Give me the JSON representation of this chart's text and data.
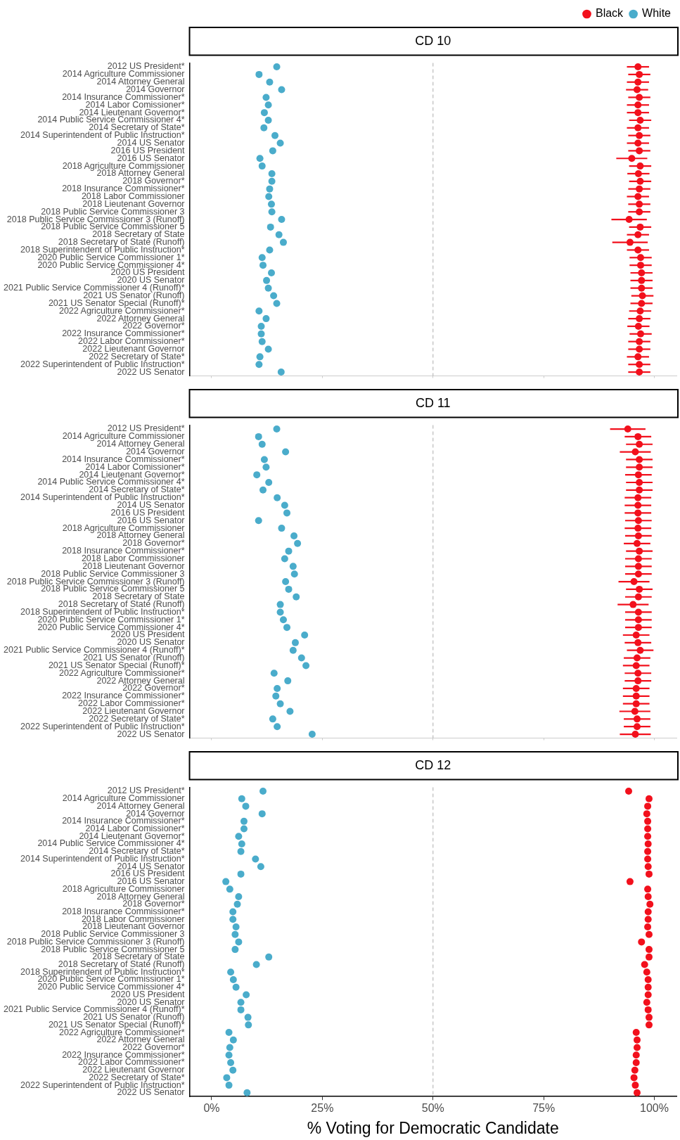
{
  "chart_data": [
    {
      "type": "scatter",
      "title": "CD 10",
      "orientation": "horizontal",
      "legend": "top right",
      "marker": "circle",
      "grid": false,
      "tick_labels": "y",
      "xlim": [
        -5,
        105
      ],
      "xticks": [
        0,
        25,
        50,
        75,
        100
      ],
      "categories": [
        "2012 US President*",
        "2014 Agriculture Commissioner",
        "2014 Attorney General",
        "2014 Governor",
        "2014 Insurance Commissioner*",
        "2014 Labor Comissioner*",
        "2014 Lieutenant Governor*",
        "2014 Public Service Commissioner 4*",
        "2014 Secretary of State*",
        "2014 Superintendent of Public Instruction*",
        "2014 US Senator",
        "2016 US President",
        "2016 US Senator",
        "2018 Agriculture Commissioner",
        "2018 Attorney General",
        "2018 Governor*",
        "2018 Insurance Commissioner*",
        "2018 Labor Commissioner",
        "2018 Lieutenant Governor",
        "2018 Public Service Commissioner 3",
        "2018 Public Service Commissioner 3 (Runoff)",
        "2018 Public Service Commissioner 5",
        "2018 Secretary of State",
        "2018 Secretary of State (Runoff)",
        "2018 Superintendent of Public Instruction*",
        "2020 Public Service Commissioner 1*",
        "2020 Public Service Commissioner 4*",
        "2020 US President",
        "2020 US Senator",
        "2021 Public Service Commissioner 4 (Runoff)*",
        "2021 US Senator (Runoff)",
        "2021 US Senator Special (Runoff)*",
        "2022 Agriculture Commissioner*",
        "2022 Attorney General",
        "2022 Governor*",
        "2022 Insurance Commissioner*",
        "2022 Labor Commissioner*",
        "2022 Lieutenant Governor",
        "2022 Secretary of State*",
        "2022 Superintendent of Public Instruction*",
        "2022 US Senator"
      ],
      "ref_lines": [
        {
          "axis": "x",
          "value": 50,
          "color": "#bbbbbb",
          "line_style": "dashed"
        }
      ],
      "series": [
        {
          "name": "Black",
          "color": "#f2101c",
          "values": [
            96.3,
            96.6,
            96.3,
            96.1,
            96.6,
            96.3,
            96.3,
            96.8,
            96.3,
            96.6,
            96.3,
            96.6,
            94.9,
            96.8,
            96.4,
            96.8,
            96.6,
            96.3,
            96.6,
            96.6,
            94.3,
            96.8,
            96.3,
            94.5,
            96.3,
            96.9,
            96.9,
            97.1,
            97.1,
            97.1,
            97.3,
            97.1,
            96.8,
            96.6,
            96.4,
            96.9,
            96.6,
            96.6,
            96.3,
            96.6,
            96.6
          ],
          "errors": [
            2.5,
            2.5,
            2.5,
            2.5,
            2.5,
            2.5,
            2.5,
            2.5,
            2.5,
            2.5,
            2.5,
            2.5,
            3.5,
            2.5,
            2.5,
            2.5,
            2.5,
            2.5,
            2.5,
            2.5,
            4,
            2.5,
            2.5,
            4,
            2.5,
            2.5,
            2.5,
            2.5,
            2.5,
            2.5,
            2.5,
            2.5,
            2.5,
            2.5,
            2.5,
            2.5,
            2.5,
            2.5,
            2.5,
            2.5,
            2.5
          ]
        },
        {
          "name": "White",
          "color": "#4aaccb",
          "values": [
            14.7,
            10.7,
            13.1,
            15.8,
            12.3,
            12.8,
            11.9,
            12.8,
            11.8,
            14.3,
            15.5,
            13.8,
            10.9,
            11.4,
            13.6,
            13.6,
            13.1,
            12.9,
            13.5,
            13.6,
            15.8,
            13.3,
            15.2,
            16.2,
            13.1,
            11.4,
            11.6,
            13.5,
            12.4,
            12.8,
            14.0,
            14.7,
            10.7,
            12.3,
            11.2,
            11.2,
            11.4,
            12.8,
            10.9,
            10.7,
            15.7
          ]
        }
      ]
    },
    {
      "type": "scatter",
      "title": "CD 11",
      "orientation": "horizontal",
      "marker": "circle",
      "grid": false,
      "tick_labels": "y",
      "xlim": [
        -5,
        105
      ],
      "xticks": [
        0,
        25,
        50,
        75,
        100
      ],
      "categories": [
        "2012 US President*",
        "2014 Agriculture Commissioner",
        "2014 Attorney General",
        "2014 Governor",
        "2014 Insurance Commissioner*",
        "2014 Labor Comissioner*",
        "2014 Lieutenant Governor*",
        "2014 Public Service Commissioner 4*",
        "2014 Secretary of State*",
        "2014 Superintendent of Public Instruction*",
        "2014 US Senator",
        "2016 US President",
        "2016 US Senator",
        "2018 Agriculture Commissioner",
        "2018 Attorney General",
        "2018 Governor*",
        "2018 Insurance Commissioner*",
        "2018 Labor Commissioner",
        "2018 Lieutenant Governor",
        "2018 Public Service Commissioner 3",
        "2018 Public Service Commissioner 3 (Runoff)",
        "2018 Public Service Commissioner 5",
        "2018 Secretary of State",
        "2018 Secretary of State (Runoff)",
        "2018 Superintendent of Public Instruction*",
        "2020 Public Service Commissioner 1*",
        "2020 Public Service Commissioner 4*",
        "2020 US President",
        "2020 US Senator",
        "2021 Public Service Commissioner 4 (Runoff)*",
        "2021 US Senator (Runoff)",
        "2021 US Senator Special (Runoff)*",
        "2022 Agriculture Commissioner*",
        "2022 Attorney General",
        "2022 Governor*",
        "2022 Insurance Commissioner*",
        "2022 Labor Commissioner*",
        "2022 Lieutenant Governor",
        "2022 Secretary of State*",
        "2022 Superintendent of Public Instruction*",
        "2022 US Senator"
      ],
      "ref_lines": [
        {
          "axis": "x",
          "value": 50,
          "color": "#bbbbbb",
          "line_style": "dashed"
        }
      ],
      "series": [
        {
          "color": "#f2101c",
          "values": [
            94.0,
            96.3,
            96.6,
            95.7,
            96.6,
            96.6,
            96.4,
            96.6,
            96.6,
            96.3,
            96.3,
            96.3,
            96.4,
            96.3,
            96.4,
            96.1,
            96.6,
            96.4,
            96.4,
            96.4,
            95.4,
            96.6,
            96.4,
            95.2,
            96.4,
            96.4,
            96.4,
            95.9,
            96.3,
            96.8,
            96.1,
            95.9,
            96.3,
            96.3,
            95.9,
            95.9,
            95.9,
            95.6,
            96.1,
            96.1,
            95.7
          ],
          "errors": [
            4,
            3,
            3,
            3.5,
            3,
            3,
            3,
            3,
            3,
            3,
            3,
            3,
            3,
            3,
            3,
            3,
            3,
            3,
            3,
            3,
            3.5,
            3,
            3,
            3.5,
            3,
            3,
            3,
            3,
            3,
            3,
            3,
            3,
            3,
            3,
            3,
            3,
            3,
            3.5,
            3,
            3,
            3.5
          ]
        },
        {
          "color": "#4aaccb",
          "values": [
            14.7,
            10.6,
            11.4,
            16.7,
            11.9,
            12.3,
            10.2,
            12.9,
            11.6,
            14.8,
            16.5,
            17.0,
            10.6,
            15.8,
            18.6,
            19.4,
            17.4,
            16.5,
            18.4,
            18.7,
            16.7,
            17.4,
            19.1,
            15.5,
            15.5,
            16.2,
            17.0,
            21.0,
            18.9,
            18.4,
            20.3,
            21.3,
            14.1,
            17.2,
            14.8,
            14.5,
            15.5,
            17.7,
            13.8,
            14.8,
            22.7
          ]
        }
      ]
    },
    {
      "type": "scatter",
      "title": "CD 12",
      "orientation": "horizontal",
      "marker": "circle",
      "grid": false,
      "xlabel": "% Voting for Democratic Candidate",
      "categories": [
        "2012 US President*",
        "2014 Agriculture Commissioner",
        "2014 Attorney General",
        "2014 Governor",
        "2014 Insurance Commissioner*",
        "2014 Labor Comissioner*",
        "2014 Lieutenant Governor*",
        "2014 Public Service Commissioner 4*",
        "2014 Secretary of State*",
        "2014 Superintendent of Public Instruction*",
        "2014 US Senator",
        "2016 US President",
        "2016 US Senator",
        "2018 Agriculture Commissioner",
        "2018 Attorney General",
        "2018 Governor*",
        "2018 Insurance Commissioner*",
        "2018 Labor Commissioner",
        "2018 Lieutenant Governor",
        "2018 Public Service Commissioner 3",
        "2018 Public Service Commissioner 3 (Runoff)",
        "2018 Public Service Commissioner 5",
        "2018 Secretary of State",
        "2018 Secretary of State (Runoff)",
        "2018 Superintendent of Public Instruction*",
        "2020 Public Service Commissioner 1*",
        "2020 Public Service Commissioner 4*",
        "2020 US President",
        "2020 US Senator",
        "2021 Public Service Commissioner 4 (Runoff)*",
        "2021 US Senator (Runoff)",
        "2021 US Senator Special (Runoff)*",
        "2022 Agriculture Commissioner*",
        "2022 Attorney General",
        "2022 Governor*",
        "2022 Insurance Commissioner*",
        "2022 Labor Commissioner*",
        "2022 Lieutenant Governor",
        "2022 Secretary of State*",
        "2022 Superintendent of Public Instruction*",
        "2022 US Senator"
      ],
      "xlim": [
        -5,
        105
      ],
      "xticks": [
        {
          "value": 0,
          "label": "0%"
        },
        {
          "value": 25,
          "label": "25%"
        },
        {
          "value": 50,
          "label": "50%"
        },
        {
          "value": 75,
          "label": "75%"
        },
        {
          "value": 100,
          "label": "100%"
        }
      ],
      "ref_lines": [
        {
          "axis": "x",
          "value": 50,
          "color": "#bbbbbb",
          "line_style": "dashed"
        }
      ],
      "series": [
        {
          "color": "#f2101c",
          "values": [
            94.2,
            98.8,
            98.5,
            98.3,
            98.5,
            98.5,
            98.5,
            98.6,
            98.5,
            98.5,
            98.6,
            98.8,
            94.5,
            98.5,
            98.6,
            99.0,
            98.6,
            98.6,
            98.5,
            98.8,
            97.1,
            98.8,
            98.8,
            97.8,
            98.3,
            98.6,
            98.6,
            98.6,
            98.3,
            98.6,
            98.8,
            98.8,
            95.9,
            96.1,
            96.1,
            95.9,
            95.9,
            95.6,
            95.4,
            95.7,
            96.1
          ]
        },
        {
          "color": "#4aaccb",
          "values": [
            11.6,
            6.8,
            7.7,
            11.4,
            7.3,
            7.3,
            6.1,
            6.8,
            6.6,
            9.9,
            11.1,
            6.6,
            3.2,
            4.1,
            6.1,
            5.8,
            4.8,
            4.8,
            5.5,
            5.3,
            6.1,
            5.3,
            12.9,
            10.1,
            4.3,
            4.9,
            5.5,
            7.8,
            6.6,
            6.6,
            8.2,
            8.3,
            3.9,
            4.9,
            4.1,
            3.9,
            4.3,
            4.8,
            3.4,
            3.9,
            8.0
          ]
        }
      ]
    }
  ]
}
